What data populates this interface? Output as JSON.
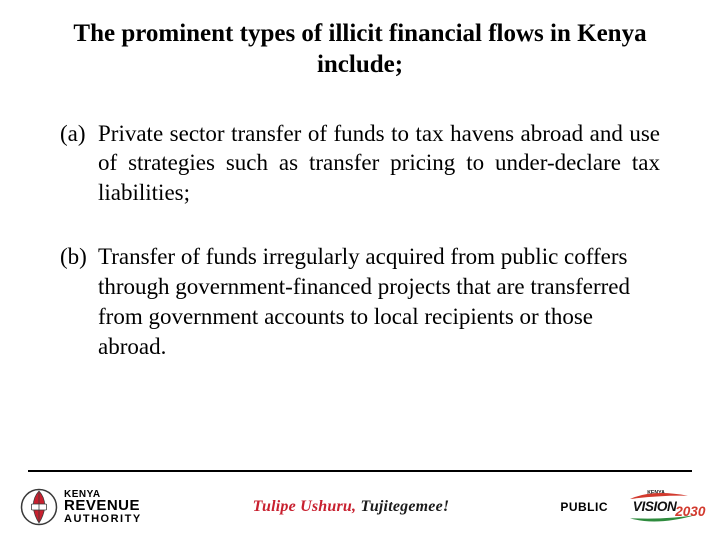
{
  "title": "The prominent types of illicit financial flows in Kenya include;",
  "items": [
    {
      "marker": "(a)",
      "text": "Private sector transfer of funds to tax havens abroad and use of strategies such as transfer pricing to under-declare tax liabilities;",
      "justify": true
    },
    {
      "marker": "(b)",
      "text": "Transfer of funds irregularly acquired from public coffers through government-financed projects that are transferred from government accounts to local recipients or those abroad.",
      "justify": false
    }
  ],
  "footer": {
    "kra": {
      "line1": "KENYA",
      "line2": "REVENUE",
      "line3": "AUTHORITY"
    },
    "slogan_part1": "Tulipe Ushuru,",
    "slogan_part2": "Tujitegemee!",
    "classification": "PUBLIC",
    "vision": {
      "top": "KENYA",
      "word": "VISION",
      "year": "2030"
    }
  },
  "colors": {
    "slogan1": "#c8202f",
    "slogan2": "#1b1b1b",
    "kra_red": "#c8202f",
    "kra_dark": "#3a3a3a",
    "vision_red": "#d23a2e",
    "vision_green": "#2e8b3d",
    "vision_black": "#111"
  }
}
